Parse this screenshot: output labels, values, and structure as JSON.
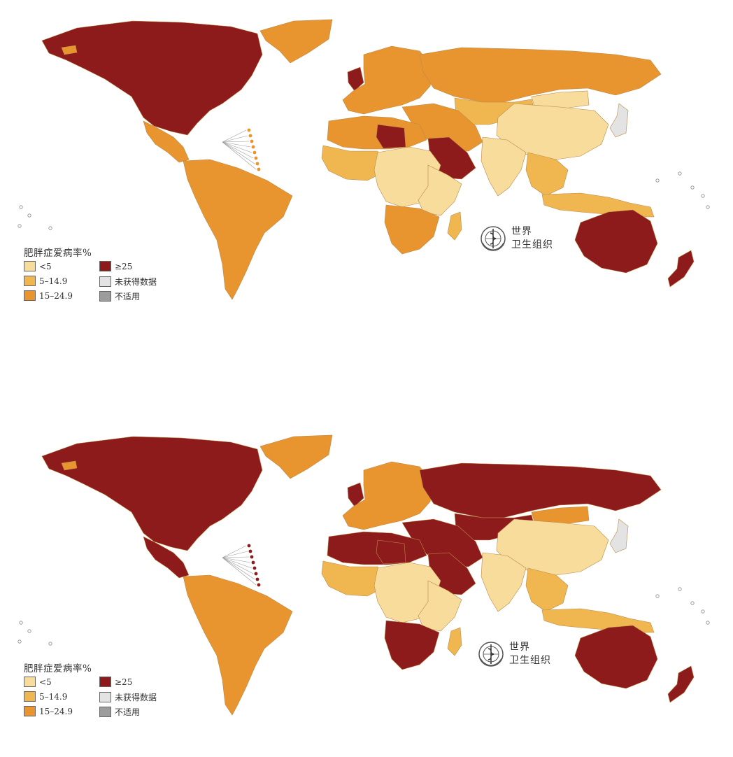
{
  "colors": {
    "lt5": "#f7dc9b",
    "c5_14": "#f0b750",
    "c15_24": "#e8952f",
    "gte25": "#8e1b1b",
    "nodata": "#e3e3e3",
    "na": "#9c9c9c",
    "ocean": "#ffffff"
  },
  "maps": [
    {
      "legend": {
        "title": "肥胖症爱病率%",
        "items": [
          {
            "label": "<5",
            "color_key": "lt5"
          },
          {
            "label": "5–14.9",
            "color_key": "c5_14"
          },
          {
            "label": "15–24.9",
            "color_key": "c15_24"
          },
          {
            "label": "≥25",
            "color_key": "gte25"
          },
          {
            "label": "未获得数据",
            "color_key": "nodata"
          },
          {
            "label": "不适用",
            "color_key": "na"
          }
        ]
      },
      "logo": {
        "line1": "世界",
        "line2": "卫生组织",
        "icon": "who-emblem-icon"
      },
      "regions": {
        "north_america": "gte25",
        "greenland": "c15_24",
        "central_america": "c15_24",
        "south_america": "c15_24",
        "europe": "c15_24",
        "russia": "c15_24",
        "north_africa": "c15_24",
        "libya": "gte25",
        "arabia": "gte25",
        "west_africa": "c5_14",
        "central_africa": "lt5",
        "east_africa": "lt5",
        "southern_africa": "c15_24",
        "madagascar": "c5_14",
        "middle_east": "c15_24",
        "central_asia": "c5_14",
        "china": "lt5",
        "india": "lt5",
        "southeast_asia": "c5_14",
        "indonesia": "c5_14",
        "japan": "nodata",
        "australia": "gte25",
        "new_zealand": "gte25",
        "uk": "gte25",
        "iceland": "c15_24",
        "mongolia": "lt5"
      }
    },
    {
      "legend": {
        "title": "肥胖症爱病率%",
        "items": [
          {
            "label": "<5",
            "color_key": "lt5"
          },
          {
            "label": "5–14.9",
            "color_key": "c5_14"
          },
          {
            "label": "15–24.9",
            "color_key": "c15_24"
          },
          {
            "label": "≥25",
            "color_key": "gte25"
          },
          {
            "label": "未获得数据",
            "color_key": "nodata"
          },
          {
            "label": "不适用",
            "color_key": "na"
          }
        ]
      },
      "logo": {
        "line1": "世界",
        "line2": "卫生组织",
        "icon": "who-emblem-icon"
      },
      "regions": {
        "north_america": "gte25",
        "greenland": "c15_24",
        "central_america": "gte25",
        "south_america": "c15_24",
        "europe": "c15_24",
        "russia": "gte25",
        "north_africa": "gte25",
        "libya": "gte25",
        "arabia": "gte25",
        "west_africa": "c5_14",
        "central_africa": "lt5",
        "east_africa": "lt5",
        "southern_africa": "gte25",
        "madagascar": "c5_14",
        "middle_east": "gte25",
        "central_asia": "gte25",
        "china": "lt5",
        "india": "lt5",
        "southeast_asia": "c5_14",
        "indonesia": "c5_14",
        "japan": "nodata",
        "australia": "gte25",
        "new_zealand": "gte25",
        "uk": "gte25",
        "iceland": "c15_24",
        "mongolia": "c15_24"
      }
    }
  ]
}
